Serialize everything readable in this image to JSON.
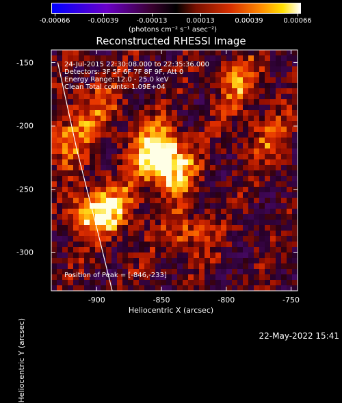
{
  "colorbar": {
    "labels": [
      "-0.00066",
      "-0.00039",
      "-0.00013",
      "0.00013",
      "0.00039",
      "0.00066"
    ],
    "units": "(photons cm⁻² s⁻¹ asec⁻²)"
  },
  "chart_data": {
    "type": "heatmap",
    "title": "Reconstructed RHESSI Image",
    "xlabel": "Heliocentric X (arcsec)",
    "ylabel": "Heliocentric Y (arcsec)",
    "xlim": [
      -935,
      -745
    ],
    "ylim": [
      -330,
      -140
    ],
    "xticks": [
      "-900",
      "-850",
      "-800",
      "-750"
    ],
    "xtick_values": [
      -900,
      -850,
      -800,
      -750
    ],
    "yticks": [
      "-150",
      "-200",
      "-250",
      "-300"
    ],
    "ytick_values": [
      -150,
      -200,
      -250,
      -300
    ],
    "colorbar_range": [
      -0.00066,
      0.00066
    ],
    "peak": {
      "x": -846,
      "y": -233
    },
    "bright_sources": [
      {
        "x": -846,
        "y": -233,
        "intensity": 1.0
      },
      {
        "x": -855,
        "y": -215,
        "intensity": 0.7
      },
      {
        "x": -905,
        "y": -270,
        "intensity": 0.75
      },
      {
        "x": -925,
        "y": -210,
        "intensity": 0.6
      },
      {
        "x": -885,
        "y": -265,
        "intensity": 0.55
      },
      {
        "x": -790,
        "y": -165,
        "intensity": 0.55
      },
      {
        "x": -830,
        "y": -285,
        "intensity": 0.5
      },
      {
        "x": -900,
        "y": -185,
        "intensity": 0.45
      },
      {
        "x": -770,
        "y": -210,
        "intensity": 0.4
      }
    ],
    "limb_curve": [
      [
        -930,
        -150
      ],
      [
        -915,
        -220
      ],
      [
        -900,
        -280
      ],
      [
        -888,
        -330
      ]
    ]
  },
  "annotations": [
    "24-Jul-2015 22:30:08.000 to 22:35:36.000",
    "Detectors: 3F 5F 6F 7F 8F 9F, Att 0",
    "Energy Range: 12.0 - 25.0 keV",
    "Clean     Total counts: 1.09E+04"
  ],
  "peak_text": "Position of Peak = [-846,-233]",
  "footer": "22-May-2022 15:41"
}
